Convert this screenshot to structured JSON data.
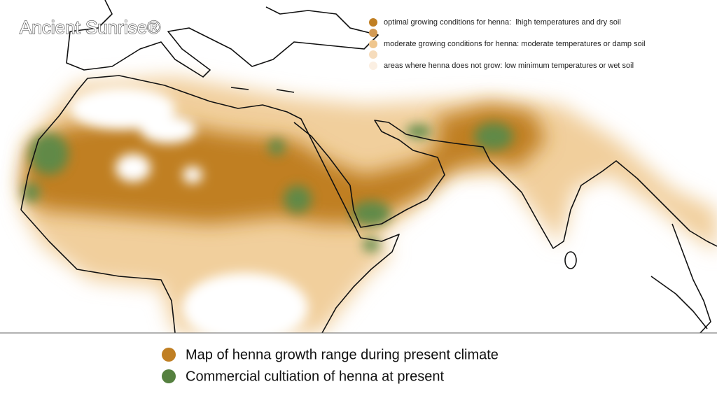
{
  "watermark": "Ancient Sunrise®",
  "map_key": {
    "items": [
      {
        "label": "optimal growing conditions for henna:  lhigh temperatures and dry soil"
      },
      {
        "label": "moderate growing conditions for henna: moderate temperatures or damp soil"
      },
      {
        "label": "areas where henna does not grow: low minimum temperatures or wet soil"
      }
    ]
  },
  "legend": {
    "items": [
      {
        "label": "Map of henna growth range during present climate"
      },
      {
        "label": "Commercial cultiation of henna at present"
      }
    ]
  }
}
